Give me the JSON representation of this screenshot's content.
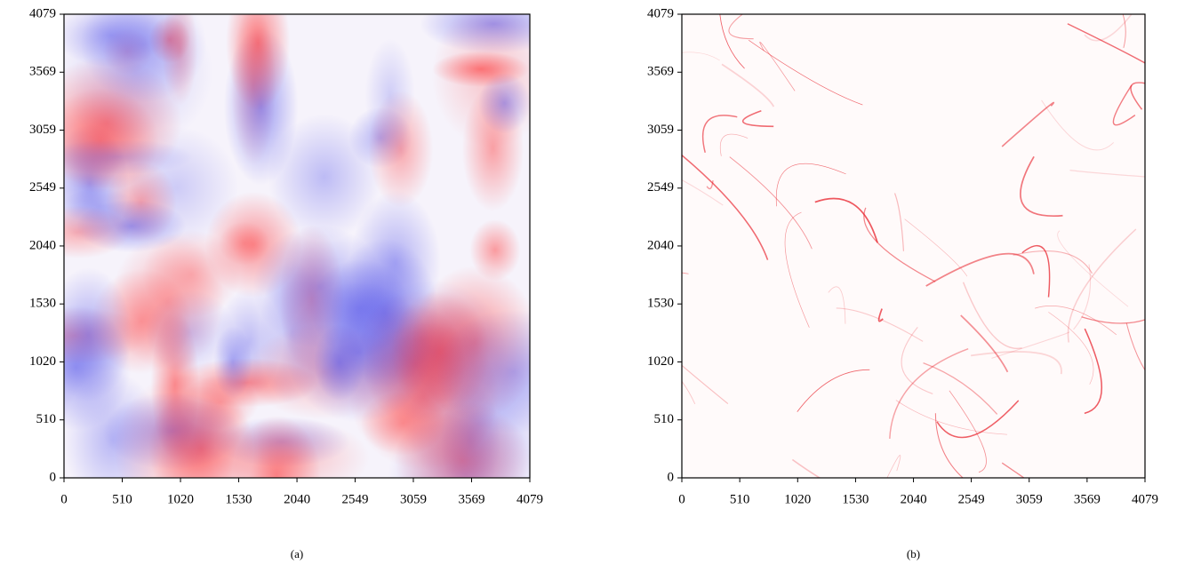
{
  "chart_data": [
    {
      "type": "heatmap",
      "caption": "(a)",
      "cmap": "bwr",
      "xlim": [
        0,
        4079
      ],
      "ylim": [
        0,
        4079
      ],
      "xticks": [
        0,
        510,
        1020,
        1530,
        2040,
        2549,
        3059,
        3569,
        4079
      ],
      "yticks": [
        0,
        510,
        1020,
        1530,
        2040,
        2549,
        3059,
        3569,
        4079
      ]
    },
    {
      "type": "heatmap",
      "caption": "(b)",
      "cmap": "Reds",
      "xlim": [
        0,
        4079
      ],
      "ylim": [
        0,
        4079
      ],
      "xticks": [
        0,
        510,
        1020,
        1530,
        2040,
        2549,
        3059,
        3569,
        4079
      ],
      "yticks": [
        0,
        510,
        1020,
        1530,
        2040,
        2549,
        3059,
        3569,
        4079
      ]
    }
  ]
}
